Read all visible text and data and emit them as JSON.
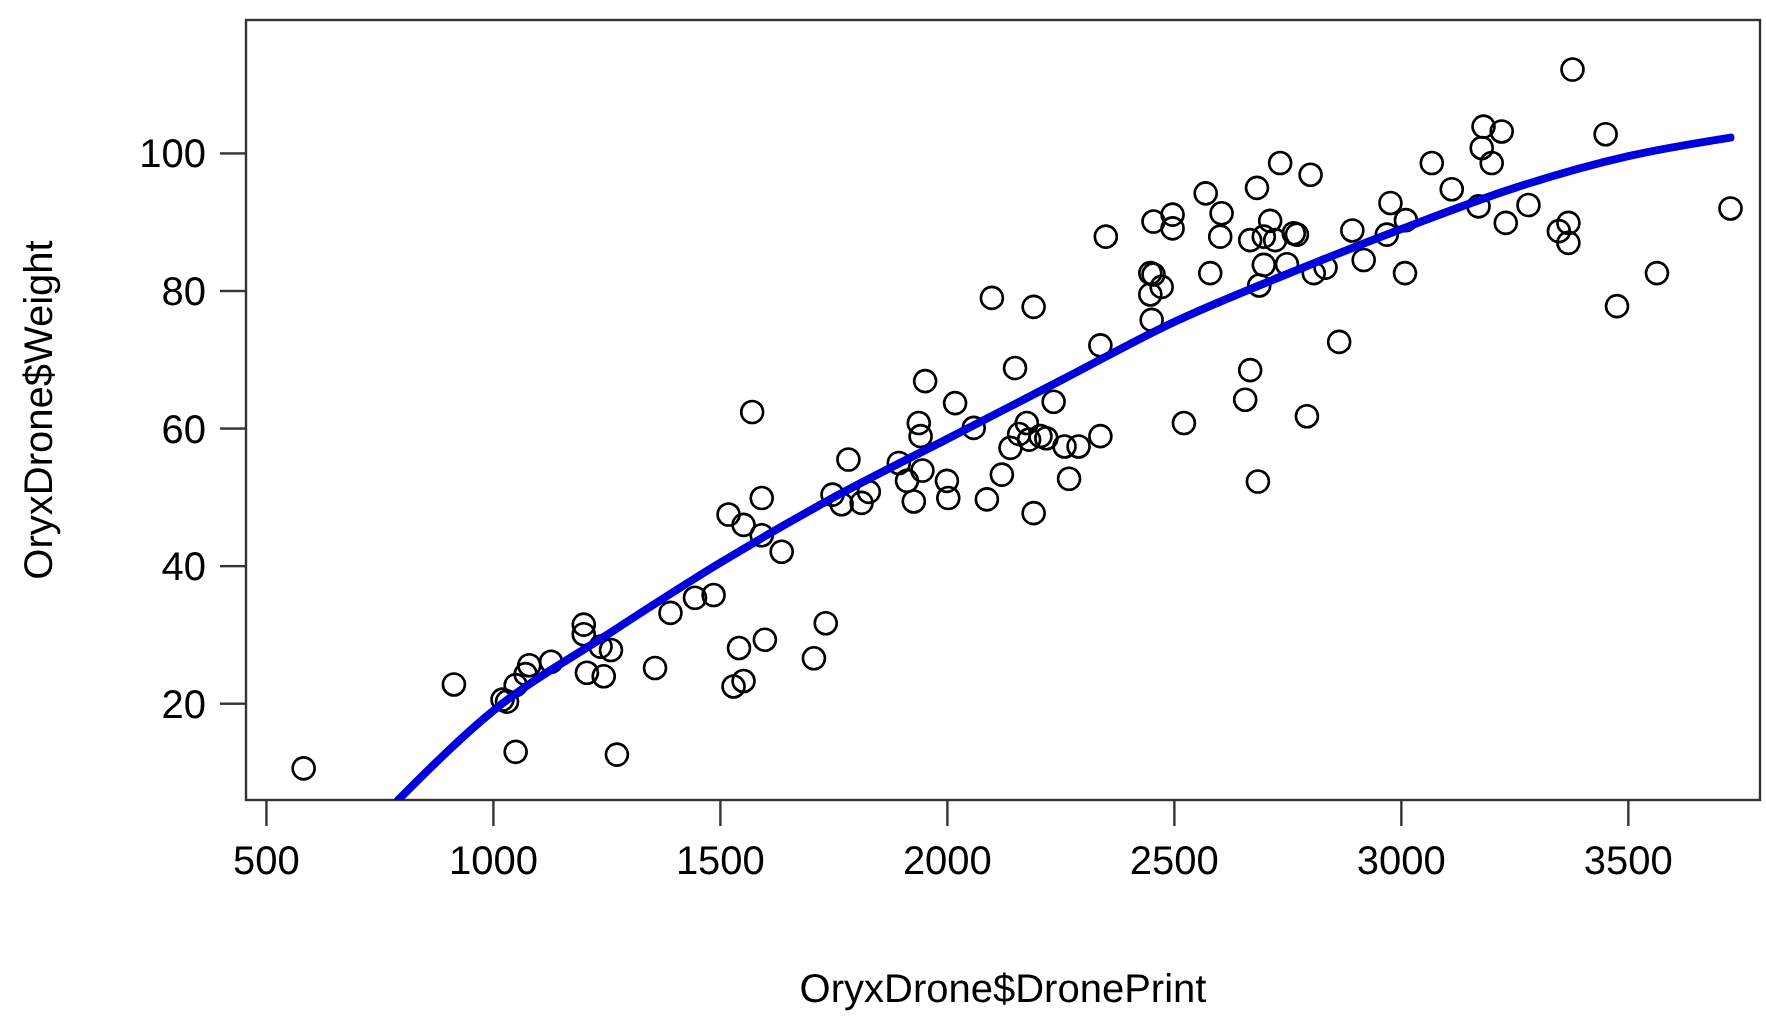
{
  "chart_data": {
    "type": "scatter",
    "xlabel": "OryxDrone$DronePrint",
    "ylabel": "OryxDrone$Weight",
    "xlim": [
      455,
      3790
    ],
    "ylim": [
      6,
      119.4
    ],
    "xticks": [
      500,
      1000,
      1500,
      2000,
      2500,
      3000,
      3500
    ],
    "yticks": [
      20,
      40,
      60,
      80,
      100
    ],
    "grid": false,
    "series": [
      {
        "marker": "circle",
        "color": "#000000",
        "x": [
          582,
          913,
          1020,
          1030,
          1049,
          1071,
          1079,
          1127,
          1049,
          1199,
          1199,
          1206,
          1236,
          1259,
          1243,
          1272,
          1356,
          1390,
          1444,
          1485,
          1518,
          1551,
          1570,
          1591,
          1591,
          1635,
          1541,
          1529,
          1551,
          1598,
          1706,
          1732,
          1747,
          1767,
          1782,
          1811,
          1827,
          1893,
          1911,
          1926,
          1937,
          1941,
          1945,
          1951,
          1999,
          2002,
          2017,
          2058,
          2087,
          2098,
          2120,
          2139,
          2149,
          2158,
          2175,
          2180,
          2190,
          2190,
          2234,
          2205,
          2218,
          2258,
          2289,
          2337,
          2268,
          2337,
          2349,
          2454,
          2496,
          2496,
          2447,
          2454,
          2472,
          2447,
          2450,
          2521,
          2569,
          2604,
          2601,
          2579,
          2667,
          2656,
          2684,
          2682,
          2733,
          2800,
          2667,
          2697,
          2711,
          2722,
          2763,
          2770,
          2697,
          2687,
          2748,
          2807,
          2833,
          2792,
          2863,
          2892,
          2917,
          2976,
          3010,
          2968,
          3008,
          3067,
          3111,
          3181,
          3221,
          3177,
          3199,
          3170,
          3230,
          3280,
          3377,
          3450,
          3347,
          3368,
          3368,
          3475,
          3563,
          3725
        ],
        "values": [
          10.6,
          22.8,
          20.6,
          20.3,
          22.7,
          24.3,
          25.6,
          26.1,
          13.0,
          31.5,
          30.1,
          24.5,
          28.3,
          27.8,
          24.0,
          12.6,
          25.2,
          33.2,
          35.4,
          35.8,
          47.5,
          46.0,
          62.4,
          49.9,
          44.5,
          42.1,
          28.1,
          22.5,
          23.3,
          29.3,
          26.6,
          31.7,
          50.4,
          49.0,
          55.5,
          49.2,
          50.8,
          55.0,
          52.4,
          49.4,
          60.8,
          58.9,
          53.9,
          66.9,
          52.4,
          49.9,
          63.7,
          60.1,
          49.7,
          79.0,
          53.3,
          57.2,
          68.8,
          59.2,
          60.8,
          58.4,
          47.7,
          77.7,
          63.9,
          58.9,
          58.6,
          57.4,
          57.4,
          58.9,
          52.7,
          72.1,
          87.9,
          90.1,
          91.1,
          89.1,
          82.6,
          82.4,
          80.6,
          79.5,
          75.8,
          60.8,
          94.2,
          91.3,
          87.9,
          82.6,
          68.5,
          64.2,
          52.3,
          95.0,
          98.6,
          96.9,
          87.4,
          87.9,
          90.2,
          87.4,
          88.4,
          88.2,
          83.8,
          80.8,
          83.9,
          82.6,
          83.4,
          61.8,
          72.6,
          88.8,
          84.5,
          92.8,
          90.3,
          88.2,
          82.6,
          98.6,
          94.8,
          103.9,
          103.2,
          100.8,
          98.6,
          92.3,
          89.9,
          92.5,
          112.2,
          102.8,
          88.7,
          89.9,
          87.0,
          77.8,
          82.6,
          92.0
        ]
      },
      {
        "type": "line",
        "color": "#0000dd",
        "x": [
          790,
          1000,
          1250,
          1500,
          1750,
          2000,
          2250,
          2500,
          2750,
          3000,
          3250,
          3500,
          3725
        ],
        "values": [
          6,
          19,
          30,
          40.5,
          50,
          58.5,
          67,
          75.5,
          82.5,
          89,
          95,
          99.6,
          102.3
        ]
      }
    ]
  }
}
